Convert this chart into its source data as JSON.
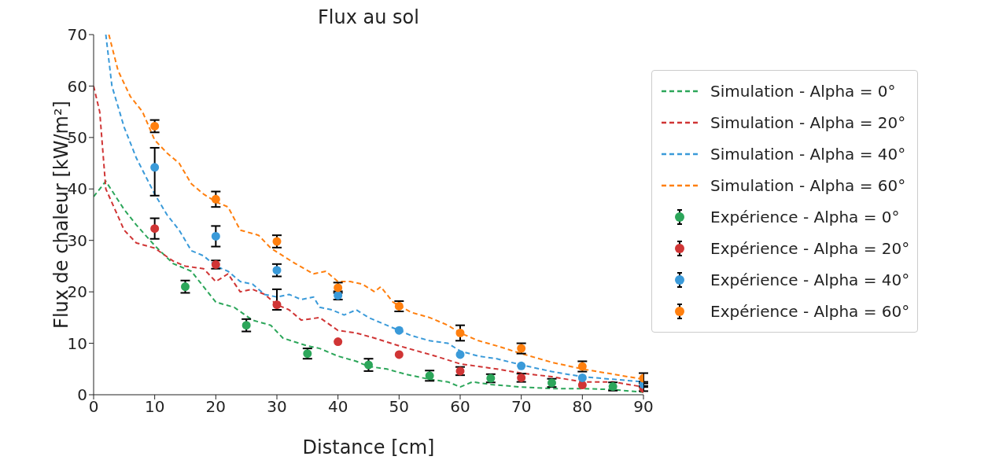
{
  "chart_data": {
    "type": "line",
    "title": "Flux au sol",
    "xlabel": "Distance [cm]",
    "ylabel": "Flux de chaleur [kW/m²]",
    "xlim": [
      0,
      90
    ],
    "ylim": [
      0,
      70
    ],
    "xticks": [
      0,
      10,
      20,
      30,
      40,
      50,
      60,
      70,
      80,
      90
    ],
    "yticks": [
      0,
      10,
      20,
      30,
      40,
      50,
      60,
      70
    ],
    "grid": false,
    "legend": "right",
    "line_style": "dashed",
    "series": [
      {
        "name": "Simulation - Alpha = 0°",
        "color": "#2ca65a",
        "x": [
          0,
          2,
          5,
          7,
          10,
          13,
          16,
          20,
          23,
          26,
          29,
          31,
          35,
          37,
          40,
          43,
          45,
          48,
          51,
          55,
          58,
          60,
          62,
          65,
          70,
          75,
          80,
          85,
          90
        ],
        "values": [
          38.5,
          41.5,
          36,
          33,
          29,
          25.5,
          24,
          18,
          17,
          14.5,
          13.5,
          11,
          9.5,
          9,
          7.5,
          6.5,
          5.5,
          5,
          4,
          3,
          2.5,
          1.5,
          2.5,
          2,
          1.5,
          1.2,
          1.2,
          1,
          0.5
        ]
      },
      {
        "name": "Simulation - Alpha = 20°",
        "color": "#d03535",
        "x": [
          0,
          1,
          2,
          5,
          7,
          10,
          13,
          15,
          18,
          20,
          22,
          24,
          26,
          28,
          30,
          32,
          34,
          37,
          40,
          43,
          46,
          50,
          53,
          56,
          60,
          63,
          66,
          70,
          75,
          80,
          85,
          90
        ],
        "values": [
          60,
          55,
          40,
          32,
          29.5,
          28.5,
          26,
          25,
          24.5,
          22,
          23.5,
          20,
          20.5,
          19.5,
          17.5,
          16.5,
          14.5,
          15,
          12.5,
          12,
          11,
          9.5,
          8.5,
          7.5,
          6,
          5.5,
          5,
          4.2,
          3.5,
          2.5,
          2.5,
          1.5
        ]
      },
      {
        "name": "Simulation - Alpha = 40°",
        "color": "#3a9ad9",
        "x": [
          2,
          3,
          5,
          7,
          10,
          12,
          14,
          16,
          18,
          20,
          22,
          24,
          26,
          28,
          30,
          32,
          34,
          36,
          37,
          39,
          41,
          43,
          45,
          47,
          50,
          52,
          55,
          58,
          60,
          63,
          66,
          70,
          75,
          80,
          85,
          90
        ],
        "values": [
          70,
          60,
          52,
          46,
          39,
          35,
          32,
          28,
          27,
          25,
          24,
          22,
          21.5,
          19.5,
          19,
          19.5,
          18.5,
          19,
          17,
          16.5,
          15.5,
          16.5,
          15,
          14,
          12.5,
          11.5,
          10.5,
          10,
          8.5,
          7.5,
          7,
          5.8,
          4.5,
          3.5,
          3,
          2.5
        ]
      },
      {
        "name": "Simulation - Alpha = 60°",
        "color": "#ff7f0e",
        "x": [
          2.5,
          4,
          6,
          8,
          10,
          12,
          14,
          16,
          18,
          20,
          22,
          24,
          27,
          29,
          31,
          33,
          36,
          38,
          40,
          42,
          44,
          46,
          47,
          49,
          52,
          55,
          58,
          60,
          63,
          66,
          70,
          75,
          80,
          85,
          90
        ],
        "values": [
          70,
          63,
          58,
          55,
          49.5,
          47,
          45,
          41,
          39,
          37.5,
          36.5,
          32,
          31,
          28.5,
          27,
          25.5,
          23.5,
          24,
          22,
          22,
          21.5,
          20,
          21,
          18,
          16,
          15,
          13.5,
          12,
          10.5,
          9.5,
          8,
          6.3,
          5,
          4,
          3
        ]
      },
      {
        "name": "Expérience - Alpha = 0°",
        "type": "scatter",
        "color": "#2ca65a",
        "x": [
          15,
          25,
          35,
          45,
          55,
          65,
          75,
          85
        ],
        "values": [
          21,
          13.5,
          8,
          5.8,
          3.7,
          3.2,
          2.3,
          1.6
        ],
        "errors": [
          1.2,
          1.2,
          1,
          1.2,
          1,
          0.8,
          0.8,
          0.8
        ]
      },
      {
        "name": "Expérience - Alpha = 20°",
        "type": "scatter",
        "color": "#d03535",
        "x": [
          10,
          20,
          30,
          40,
          50,
          60,
          70,
          80,
          90
        ],
        "values": [
          32.3,
          25.3,
          17.5,
          10.3,
          7.8,
          4.6,
          3.3,
          1.9,
          1.2
        ],
        "errors": [
          2,
          0.8,
          [
            16.5,
            20.5
          ],
          null,
          null,
          0.8,
          0.8,
          null,
          0.5
        ]
      },
      {
        "name": "Expérience - Alpha = 40°",
        "type": "scatter",
        "color": "#3a9ad9",
        "x": [
          10,
          20,
          30,
          40,
          50,
          60,
          70,
          80,
          90
        ],
        "values": [
          44.2,
          30.8,
          24.2,
          19.3,
          12.5,
          7.8,
          5.6,
          3.3,
          2
        ],
        "errors": [
          [
            38.7,
            48
          ],
          2,
          1.2,
          0.8,
          null,
          null,
          null,
          null,
          0.5
        ]
      },
      {
        "name": "Expérience - Alpha = 60°",
        "type": "scatter",
        "color": "#ff7f0e",
        "x": [
          10,
          20,
          30,
          40,
          50,
          60,
          70,
          80,
          90
        ],
        "values": [
          52.2,
          38,
          29.8,
          20.8,
          17.2,
          12,
          9,
          5.5,
          3.2
        ],
        "errors": [
          1.2,
          1.5,
          1.2,
          1,
          1,
          1.5,
          1,
          1,
          1
        ]
      }
    ]
  }
}
